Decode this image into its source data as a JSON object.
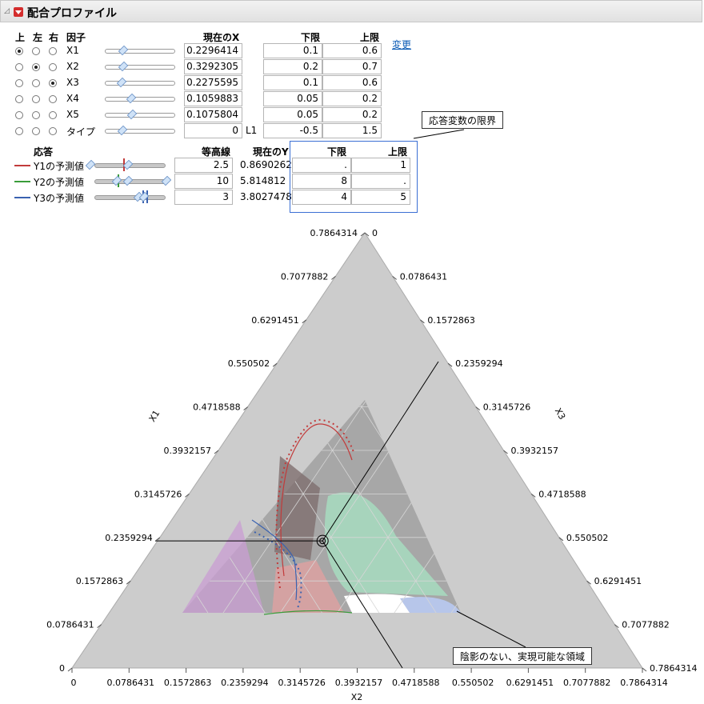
{
  "header": {
    "title": "配合プロファイル"
  },
  "factors": {
    "col_top": "上",
    "col_left": "左",
    "col_right": "右",
    "col_factor": "因子",
    "col_current_x": "現在のX",
    "col_lower": "下限",
    "col_upper": "上限",
    "change_link": "変更",
    "rows": [
      {
        "name": "X1",
        "value": "0.2296414",
        "lower": "0.1",
        "upper": "0.6",
        "pos": 0.26
      },
      {
        "name": "X2",
        "value": "0.3292305",
        "lower": "0.2",
        "upper": "0.7",
        "pos": 0.26
      },
      {
        "name": "X3",
        "value": "0.2275595",
        "lower": "0.1",
        "upper": "0.6",
        "pos": 0.24
      },
      {
        "name": "X4",
        "value": "0.1059883",
        "lower": "0.05",
        "upper": "0.2",
        "pos": 0.38
      },
      {
        "name": "X5",
        "value": "0.1075804",
        "lower": "0.05",
        "upper": "0.2",
        "pos": 0.39
      },
      {
        "name": "タイプ",
        "value": "0",
        "unit": "L1",
        "lower": "-0.5",
        "upper": "1.5",
        "pos": 0.25
      }
    ]
  },
  "responses": {
    "col_response": "応答",
    "col_contour": "等高線",
    "col_current_y": "現在のY",
    "col_lower": "下限",
    "col_upper": "上限",
    "rows": [
      {
        "name": "Y1の予測値",
        "color": "#c23b3b",
        "contour": "2.5",
        "current": "0.8690262",
        "lower": ".",
        "upper": "1"
      },
      {
        "name": "Y2の予測値",
        "color": "#3a9c3a",
        "contour": "10",
        "current": "5.814812",
        "lower": "8",
        "upper": "."
      },
      {
        "name": "Y3の予測値",
        "color": "#3a62b0",
        "contour": "3",
        "current": "3.8027478",
        "lower": "4",
        "upper": "5"
      }
    ]
  },
  "callouts": {
    "limits": "応答変数の限界",
    "feasible": "陰影のない、実現可能な領域"
  },
  "chart_data": {
    "type": "ternary",
    "axes": {
      "left": "X1",
      "right": "X3",
      "bottom": "X2"
    },
    "ticks": [
      "0",
      "0.0786431",
      "0.1572863",
      "0.2359294",
      "0.3145726",
      "0.3932157",
      "0.4718588",
      "0.550502",
      "0.6291451",
      "0.7077882",
      "0.7864314"
    ],
    "axis_max": 0.7864314,
    "current_point": {
      "X1": 0.2296414,
      "X2": 0.3292305,
      "X3": 0.2275595
    },
    "colors": {
      "y1": "#c23b3b",
      "y2": "#3a9c3a",
      "y3": "#3a62b0",
      "outer": "#cccccc",
      "inner": "#a7a7a7"
    }
  }
}
